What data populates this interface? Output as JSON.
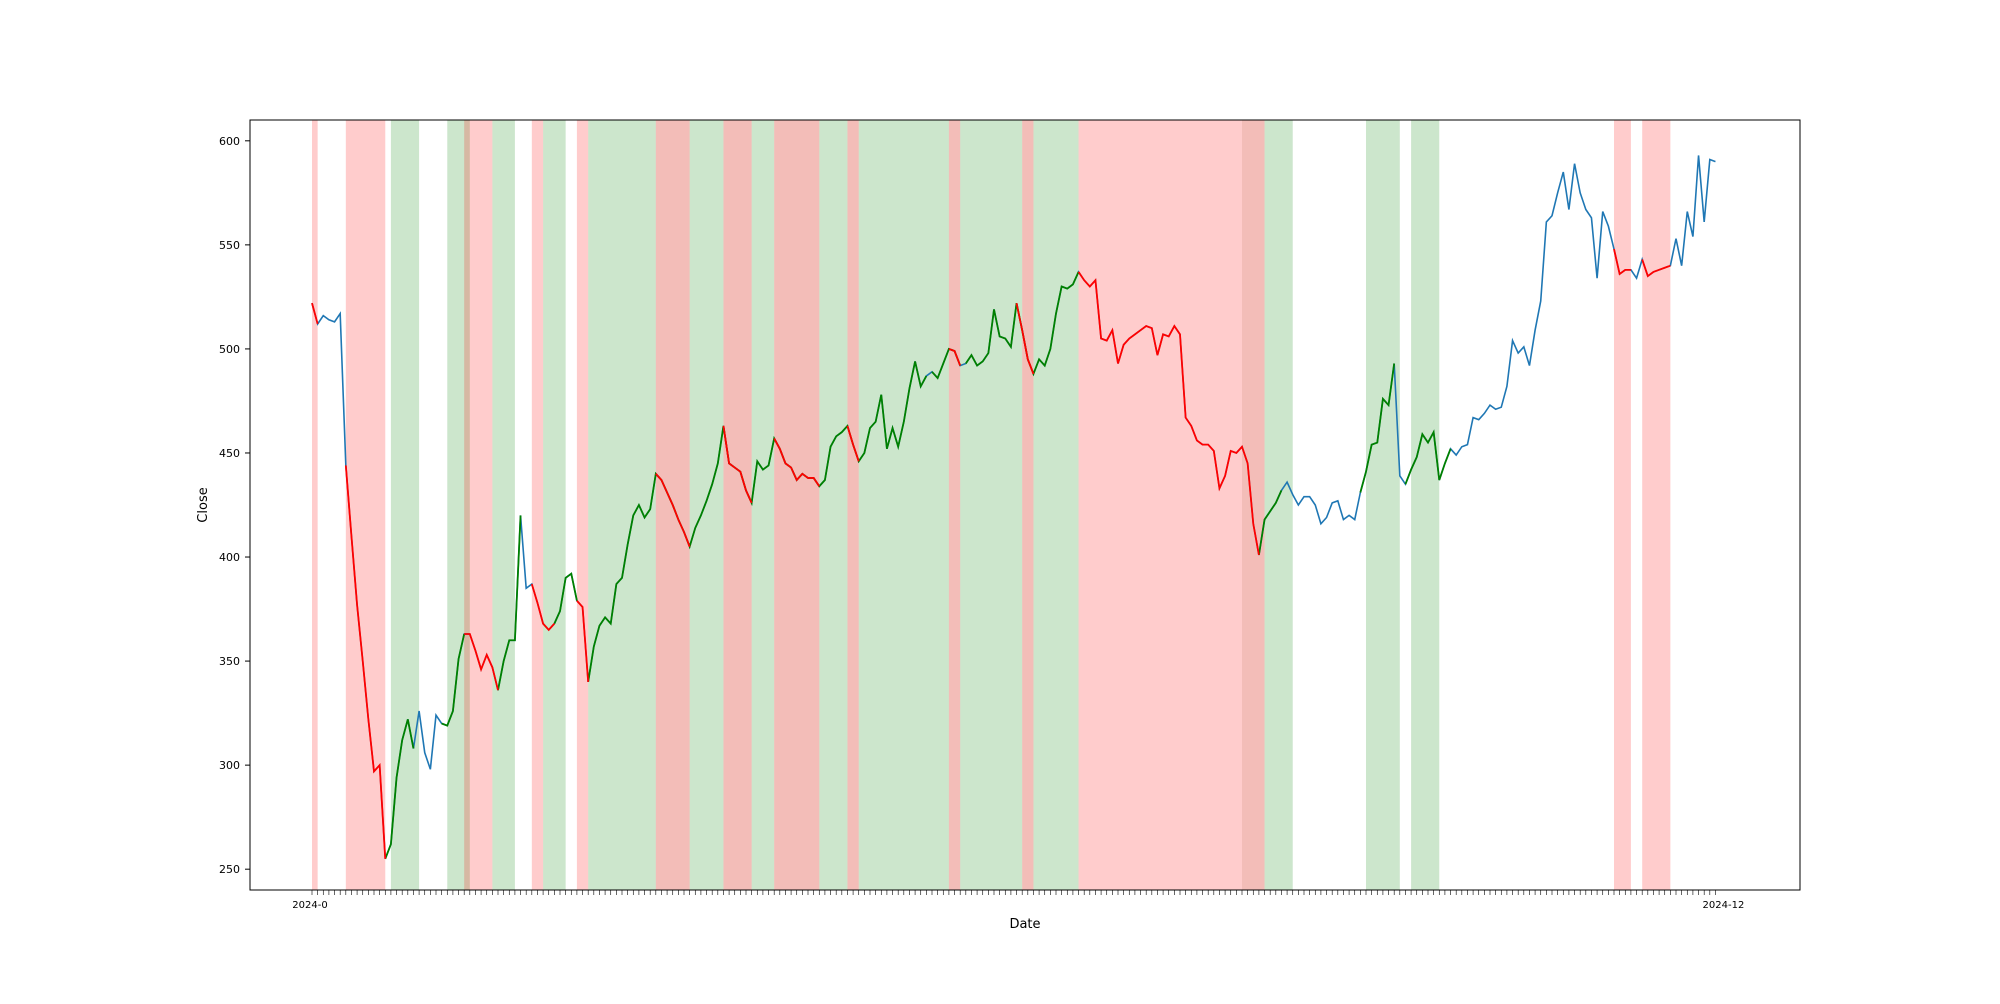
{
  "chart_data": {
    "type": "line",
    "title": "",
    "xlabel": "Date",
    "ylabel": "Close",
    "ylim": [
      240,
      610
    ],
    "yticks": [
      250,
      300,
      350,
      400,
      450,
      500,
      550,
      600
    ],
    "xlim": [
      -11,
      264
    ],
    "x_tick_first_label": "2024-0",
    "x_tick_last_label": "2024-12",
    "grid": false,
    "legend": "none",
    "colors": {
      "base_line": "#1f77b4",
      "up_segment": "#008000",
      "down_segment": "#ff0000",
      "up_span": "#008000",
      "down_span": "#ff0000",
      "span_opacity": 0.2,
      "axes": "#000000"
    },
    "series": [
      {
        "values": [
          522,
          512,
          516,
          514,
          513,
          517,
          444,
          410,
          377,
          350,
          322,
          297,
          300,
          255,
          262,
          294,
          312,
          322,
          308,
          326,
          306,
          298,
          324,
          320,
          319,
          326,
          351,
          363,
          363,
          355,
          346,
          353,
          347,
          336,
          350,
          360,
          360,
          420,
          385,
          387,
          378,
          368,
          365,
          368,
          374,
          390,
          392,
          379,
          376,
          340,
          357,
          367,
          371,
          368,
          387,
          390,
          406,
          420,
          425,
          419,
          423,
          440,
          437,
          431,
          425,
          418,
          412,
          405,
          414,
          420,
          427,
          435,
          445,
          463,
          445,
          443,
          441,
          432,
          426,
          446,
          442,
          444,
          457,
          452,
          445,
          443,
          437,
          440,
          438,
          438,
          434,
          437,
          453,
          458,
          460,
          463,
          454,
          446,
          450,
          462,
          465,
          478,
          452,
          462,
          453,
          465,
          481,
          494,
          482,
          487,
          489,
          486,
          493,
          500,
          499,
          492,
          493,
          497,
          492,
          494,
          498,
          519,
          506,
          505,
          501,
          522,
          509,
          495,
          488,
          495,
          492,
          500,
          517,
          530,
          529,
          531,
          537,
          533,
          530,
          533,
          505,
          504,
          509,
          493,
          502,
          505,
          507,
          509,
          511,
          510,
          497,
          507,
          506,
          511,
          507,
          467,
          463,
          456,
          454,
          454,
          451,
          433,
          439,
          451,
          450,
          453,
          445,
          416,
          401,
          418,
          422,
          426,
          432,
          436,
          430,
          425,
          429,
          429,
          425,
          416,
          419,
          426,
          427,
          418,
          420,
          418,
          431,
          441,
          454,
          455,
          476,
          473,
          493,
          439,
          435,
          442,
          448,
          459,
          455,
          460,
          437,
          445,
          452,
          449,
          453,
          454,
          467,
          466,
          469,
          473,
          471,
          472,
          482,
          504,
          498,
          501,
          492,
          509,
          523,
          561,
          564,
          575,
          585,
          567,
          589,
          575,
          567,
          563,
          534,
          566,
          559,
          548,
          536,
          538,
          538,
          534,
          543,
          535,
          537,
          538,
          539,
          540,
          553,
          540,
          566,
          554,
          593,
          561,
          591,
          590
        ]
      }
    ],
    "down_segments": [
      [
        0,
        1
      ],
      [
        6,
        13
      ],
      [
        27,
        33
      ],
      [
        39,
        43
      ],
      [
        47,
        49
      ],
      [
        61,
        67
      ],
      [
        73,
        78
      ],
      [
        82,
        90
      ],
      [
        95,
        97
      ],
      [
        113,
        115
      ],
      [
        125,
        128
      ],
      [
        136,
        168
      ],
      [
        231,
        234
      ],
      [
        236,
        241
      ]
    ],
    "up_segments": [
      [
        13,
        18
      ],
      [
        23,
        27
      ],
      [
        33,
        37
      ],
      [
        43,
        47
      ],
      [
        49,
        109
      ],
      [
        110,
        115
      ],
      [
        116,
        136
      ],
      [
        168,
        172
      ],
      [
        186,
        192
      ],
      [
        194,
        202
      ]
    ],
    "down_spans": [
      [
        0,
        1
      ],
      [
        6,
        13
      ],
      [
        27,
        32
      ],
      [
        39,
        41
      ],
      [
        47,
        49
      ],
      [
        61,
        67
      ],
      [
        73,
        78
      ],
      [
        82,
        90
      ],
      [
        95,
        97
      ],
      [
        113,
        115
      ],
      [
        126,
        128
      ],
      [
        136,
        165
      ],
      [
        165,
        169
      ],
      [
        231,
        234
      ],
      [
        236,
        241
      ]
    ],
    "up_spans": [
      [
        14,
        19
      ],
      [
        24,
        28
      ],
      [
        32,
        36
      ],
      [
        41,
        45
      ],
      [
        49,
        61
      ],
      [
        67,
        73
      ],
      [
        78,
        82
      ],
      [
        90,
        95
      ],
      [
        97,
        113
      ],
      [
        115,
        126
      ],
      [
        128,
        136
      ],
      [
        169,
        174
      ],
      [
        187,
        193
      ],
      [
        195,
        200
      ]
    ],
    "overlap_spans": [
      [
        61,
        67
      ],
      [
        73,
        78
      ],
      [
        82,
        90
      ],
      [
        95,
        97
      ],
      [
        113,
        115
      ],
      [
        126,
        128
      ],
      [
        165,
        169
      ]
    ]
  }
}
